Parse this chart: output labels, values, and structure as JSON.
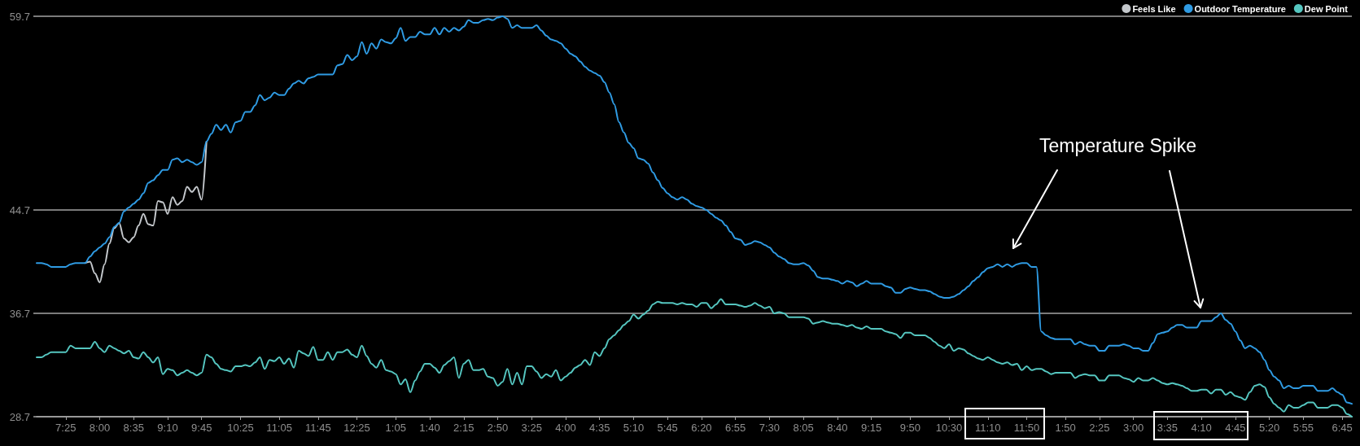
{
  "chart_data": {
    "type": "line",
    "categories": [
      null,
      null,
      null,
      null,
      null,
      null,
      "7:25",
      null,
      null,
      null,
      null,
      null,
      null,
      "8:00",
      null,
      null,
      null,
      null,
      null,
      null,
      "8:35",
      null,
      null,
      null,
      null,
      null,
      null,
      "9:10",
      null,
      null,
      null,
      null,
      null,
      null,
      "9:45",
      null,
      null,
      null,
      null,
      null,
      null,
      null,
      "10:25",
      null,
      null,
      null,
      null,
      null,
      null,
      null,
      "11:05",
      null,
      null,
      null,
      null,
      null,
      null,
      null,
      "11:45",
      null,
      null,
      null,
      null,
      null,
      null,
      null,
      "12:25",
      null,
      null,
      null,
      null,
      null,
      null,
      null,
      "1:05",
      null,
      null,
      null,
      null,
      null,
      null,
      "1:40",
      null,
      null,
      null,
      null,
      null,
      null,
      "2:15",
      null,
      null,
      null,
      null,
      null,
      null,
      "2:50",
      null,
      null,
      null,
      null,
      null,
      null,
      "3:25",
      null,
      null,
      null,
      null,
      null,
      null,
      "4:00",
      null,
      null,
      null,
      null,
      null,
      null,
      "4:35",
      null,
      null,
      null,
      null,
      null,
      null,
      "5:10",
      null,
      null,
      null,
      null,
      null,
      null,
      "5:45",
      null,
      null,
      null,
      null,
      null,
      null,
      "6:20",
      null,
      null,
      null,
      null,
      null,
      null,
      "6:55",
      null,
      null,
      null,
      null,
      null,
      null,
      "7:30",
      null,
      null,
      null,
      null,
      null,
      null,
      "8:05",
      null,
      null,
      null,
      null,
      null,
      null,
      "8:40",
      null,
      null,
      null,
      null,
      null,
      null,
      "9:15",
      null,
      null,
      null,
      null,
      null,
      null,
      null,
      "9:50",
      null,
      null,
      null,
      null,
      null,
      null,
      null,
      "10:30",
      null,
      null,
      null,
      null,
      null,
      null,
      null,
      "11:10",
      null,
      null,
      null,
      null,
      null,
      null,
      null,
      "11:50",
      null,
      null,
      null,
      null,
      null,
      null,
      null,
      "1:50",
      null,
      null,
      null,
      null,
      null,
      null,
      "2:25",
      null,
      null,
      null,
      null,
      null,
      null,
      "3:00",
      null,
      null,
      null,
      null,
      null,
      null,
      "3:35",
      null,
      null,
      null,
      null,
      null,
      null,
      "4:10",
      null,
      null,
      null,
      null,
      null,
      null,
      "4:45",
      null,
      null,
      null,
      null,
      null,
      null,
      "5:20",
      null,
      null,
      null,
      null,
      null,
      null,
      "5:55",
      null,
      null,
      null,
      null,
      null,
      null,
      null,
      "6:45",
      null,
      null
    ],
    "series": [
      {
        "name": "Feels Like",
        "color": "#c4c8cc",
        "values": [
          null,
          null,
          null,
          null,
          null,
          null,
          null,
          null,
          null,
          null,
          40.6,
          40.7,
          39.8,
          39.1,
          40.5,
          42.1,
          43.3,
          43.7,
          42.5,
          42.2,
          42.6,
          43.5,
          44.4,
          43.6,
          43.5,
          45.4,
          45.3,
          44.4,
          45.7,
          45.1,
          45.4,
          46.5,
          46.1,
          46.5,
          45.5,
          50.0,
          null,
          null,
          null,
          null,
          null,
          null,
          null,
          null,
          null,
          null,
          null,
          null,
          null,
          null,
          null,
          null,
          null,
          null,
          null,
          null,
          null,
          null,
          null,
          null,
          null,
          null,
          null,
          null,
          null,
          null,
          null,
          null,
          null,
          null,
          null,
          null,
          null,
          null,
          null,
          null,
          null,
          null,
          null,
          null,
          null,
          null,
          null,
          null,
          null,
          null,
          null,
          null,
          null,
          null,
          null,
          null,
          null,
          null,
          null,
          null,
          null,
          null,
          null,
          null,
          null,
          null,
          null,
          null,
          null,
          null,
          null,
          null,
          null,
          null,
          null,
          null,
          null,
          null,
          null,
          null,
          null,
          null,
          null,
          null,
          null,
          null,
          null,
          null,
          null,
          null,
          null,
          null,
          null,
          null,
          null,
          null,
          null,
          null,
          null,
          null,
          null,
          null,
          null,
          null,
          null,
          null,
          null,
          null,
          null,
          null,
          null,
          null,
          null,
          null,
          null,
          null,
          null,
          null,
          null,
          null,
          null,
          null,
          null,
          null,
          null,
          null,
          null,
          null,
          null,
          null,
          null,
          null,
          null,
          null,
          null,
          null,
          null,
          null,
          null,
          null,
          null,
          null,
          null,
          null,
          null,
          null,
          null,
          null,
          null,
          null,
          null,
          null,
          null,
          null,
          null,
          null,
          null,
          null,
          null,
          null,
          null,
          null,
          null,
          null,
          null,
          null,
          null,
          null,
          null,
          null,
          null,
          null,
          null,
          null,
          null,
          null,
          null,
          null,
          null,
          null,
          null,
          null,
          null,
          null,
          null,
          null,
          null,
          null,
          null,
          null,
          null,
          null,
          null,
          null,
          null,
          null,
          null,
          null,
          null,
          null,
          null,
          null,
          null,
          null,
          null,
          null,
          null,
          null,
          null,
          null,
          null,
          null,
          null,
          null,
          null,
          null,
          null,
          null,
          null,
          null,
          null,
          null,
          null,
          null,
          null,
          null,
          null,
          null,
          null,
          null,
          null,
          null,
          null,
          null,
          null,
          null
        ]
      },
      {
        "name": "Outdoor Temperature",
        "color": "#2f9be3",
        "values": [
          40.6,
          40.6,
          40.5,
          40.3,
          40.3,
          40.3,
          40.3,
          40.5,
          40.6,
          40.6,
          40.6,
          41.1,
          41.5,
          41.8,
          42.1,
          42.6,
          43.4,
          43.7,
          44.6,
          44.9,
          45.2,
          45.5,
          46.0,
          46.8,
          47.0,
          47.4,
          47.8,
          47.8,
          48.6,
          48.7,
          48.4,
          48.6,
          48.4,
          48.2,
          48.4,
          50.0,
          50.6,
          51.3,
          50.9,
          51.3,
          50.7,
          51.5,
          51.6,
          52.3,
          52.3,
          52.8,
          53.6,
          53.2,
          53.4,
          53.8,
          53.6,
          53.6,
          54.1,
          54.5,
          54.7,
          54.5,
          54.9,
          55.0,
          55.2,
          55.2,
          55.2,
          55.2,
          55.9,
          56.0,
          56.7,
          56.3,
          56.6,
          57.7,
          56.8,
          57.6,
          57.2,
          57.9,
          57.7,
          57.6,
          58.0,
          58.8,
          57.8,
          58.1,
          58.1,
          58.5,
          58.3,
          58.3,
          58.8,
          58.3,
          58.8,
          58.5,
          58.8,
          58.6,
          58.9,
          59.4,
          59.2,
          59.2,
          59.4,
          59.5,
          59.4,
          59.6,
          59.7,
          59.5,
          58.8,
          59.0,
          58.8,
          58.8,
          58.8,
          59.0,
          58.6,
          58.2,
          57.9,
          57.8,
          57.6,
          57.2,
          56.8,
          56.6,
          56.2,
          55.8,
          55.5,
          55.3,
          55.1,
          54.6,
          53.8,
          52.9,
          51.5,
          50.7,
          49.9,
          49.5,
          48.7,
          48.6,
          48.3,
          47.6,
          47.0,
          46.4,
          46.0,
          45.7,
          45.5,
          45.7,
          45.5,
          45.2,
          45.0,
          44.9,
          44.7,
          44.4,
          44.1,
          43.9,
          43.5,
          43.0,
          42.5,
          42.4,
          42.0,
          42.1,
          42.3,
          42.2,
          42.0,
          41.8,
          41.4,
          41.1,
          40.9,
          40.6,
          40.5,
          40.5,
          40.6,
          40.4,
          40.0,
          39.5,
          39.4,
          39.4,
          39.3,
          39.2,
          39.0,
          39.2,
          39.1,
          38.8,
          39.0,
          39.2,
          39.0,
          39.0,
          39.0,
          38.8,
          38.7,
          38.3,
          38.3,
          38.6,
          38.7,
          38.6,
          38.5,
          38.5,
          38.4,
          38.2,
          38.0,
          37.9,
          37.9,
          38.0,
          38.2,
          38.5,
          38.8,
          39.2,
          39.5,
          39.9,
          40.2,
          40.3,
          40.5,
          40.3,
          40.5,
          40.3,
          40.5,
          40.6,
          40.6,
          40.3,
          40.3,
          35.3,
          35.0,
          34.8,
          34.7,
          34.7,
          34.7,
          34.7,
          34.3,
          34.5,
          34.3,
          34.2,
          34.2,
          33.8,
          33.8,
          34.2,
          34.2,
          34.2,
          34.3,
          34.2,
          34.0,
          34.0,
          33.8,
          33.8,
          34.4,
          35.1,
          35.2,
          35.3,
          35.6,
          35.8,
          35.8,
          35.6,
          35.6,
          35.6,
          36.1,
          36.1,
          36.1,
          36.4,
          36.7,
          36.2,
          35.9,
          35.3,
          34.6,
          34.0,
          34.2,
          34.0,
          33.7,
          33.1,
          32.3,
          31.8,
          31.5,
          30.9,
          31.1,
          30.9,
          30.9,
          31.1,
          31.1,
          31.1,
          30.7,
          30.7,
          30.7,
          30.9,
          30.6,
          30.4,
          29.8,
          29.7
        ]
      },
      {
        "name": "Dew Point",
        "color": "#55c6c0",
        "values": [
          33.3,
          33.3,
          33.5,
          33.7,
          33.7,
          33.7,
          33.7,
          34.2,
          34.0,
          34.0,
          34.0,
          34.0,
          34.5,
          34.0,
          33.7,
          34.2,
          34.0,
          33.8,
          33.6,
          33.8,
          33.3,
          33.2,
          33.7,
          33.3,
          32.9,
          33.3,
          32.0,
          32.4,
          32.3,
          31.9,
          32.1,
          32.3,
          32.1,
          31.9,
          32.1,
          33.5,
          33.3,
          32.8,
          32.4,
          32.3,
          32.2,
          32.6,
          32.6,
          32.7,
          32.6,
          32.9,
          33.3,
          32.4,
          33.1,
          33.0,
          33.3,
          32.8,
          33.2,
          32.5,
          33.8,
          33.6,
          33.4,
          34.1,
          33.1,
          33.1,
          33.7,
          33.1,
          33.7,
          33.7,
          33.9,
          33.5,
          33.3,
          34.2,
          33.4,
          32.8,
          32.5,
          33.1,
          32.3,
          32.2,
          32.0,
          31.2,
          31.6,
          30.6,
          31.5,
          32.2,
          32.8,
          32.8,
          32.5,
          32.1,
          32.7,
          33.0,
          33.3,
          31.7,
          32.8,
          33.1,
          32.3,
          32.3,
          32.4,
          31.8,
          31.7,
          31.1,
          31.4,
          32.4,
          31.2,
          32.1,
          31.2,
          32.6,
          32.6,
          32.2,
          31.7,
          32.0,
          31.8,
          32.3,
          31.5,
          31.8,
          32.1,
          32.5,
          32.7,
          33.1,
          32.7,
          33.7,
          33.4,
          34.0,
          34.7,
          35.0,
          35.4,
          35.8,
          36.1,
          36.6,
          36.3,
          36.6,
          36.9,
          37.4,
          37.6,
          37.5,
          37.5,
          37.5,
          37.4,
          37.5,
          37.4,
          37.4,
          37.2,
          37.5,
          37.5,
          37.1,
          37.4,
          37.8,
          37.4,
          37.4,
          37.4,
          37.3,
          37.2,
          37.3,
          37.5,
          37.3,
          37.1,
          37.2,
          36.7,
          36.8,
          36.7,
          36.4,
          36.4,
          36.4,
          36.4,
          36.3,
          35.9,
          36.0,
          36.1,
          36.0,
          35.9,
          35.9,
          35.8,
          35.7,
          35.8,
          35.6,
          35.5,
          35.7,
          35.5,
          35.5,
          35.5,
          35.3,
          35.2,
          35.1,
          34.8,
          35.2,
          35.2,
          35.0,
          35.0,
          35.0,
          34.8,
          34.5,
          34.2,
          34.0,
          34.3,
          33.8,
          34.0,
          33.9,
          33.6,
          33.4,
          33.2,
          33.1,
          33.3,
          33.1,
          32.9,
          32.8,
          32.9,
          32.7,
          32.8,
          32.3,
          32.6,
          32.3,
          32.4,
          32.4,
          32.2,
          32.0,
          32.1,
          32.1,
          32.1,
          32.1,
          31.7,
          31.9,
          32.0,
          31.9,
          31.9,
          31.5,
          31.5,
          31.9,
          31.9,
          31.9,
          31.7,
          31.6,
          31.4,
          31.7,
          31.5,
          31.5,
          31.7,
          31.5,
          31.3,
          31.2,
          31.3,
          31.2,
          31.1,
          30.9,
          30.7,
          30.7,
          30.8,
          30.8,
          30.5,
          30.8,
          30.8,
          30.4,
          30.6,
          30.3,
          30.2,
          30.0,
          30.6,
          31.1,
          31.2,
          31.0,
          30.2,
          29.7,
          29.4,
          29.1,
          29.6,
          29.4,
          29.4,
          29.6,
          29.8,
          29.8,
          29.4,
          29.4,
          29.4,
          29.6,
          29.6,
          29.4,
          28.9,
          28.7
        ]
      }
    ],
    "ylim": [
      28.7,
      59.7
    ],
    "yticks": [
      28.7,
      36.7,
      44.7,
      59.7
    ],
    "grid": "y",
    "legend": "top right",
    "marker": "none",
    "line_style": "solid",
    "annotations": [
      "Temperature Spike"
    ]
  }
}
